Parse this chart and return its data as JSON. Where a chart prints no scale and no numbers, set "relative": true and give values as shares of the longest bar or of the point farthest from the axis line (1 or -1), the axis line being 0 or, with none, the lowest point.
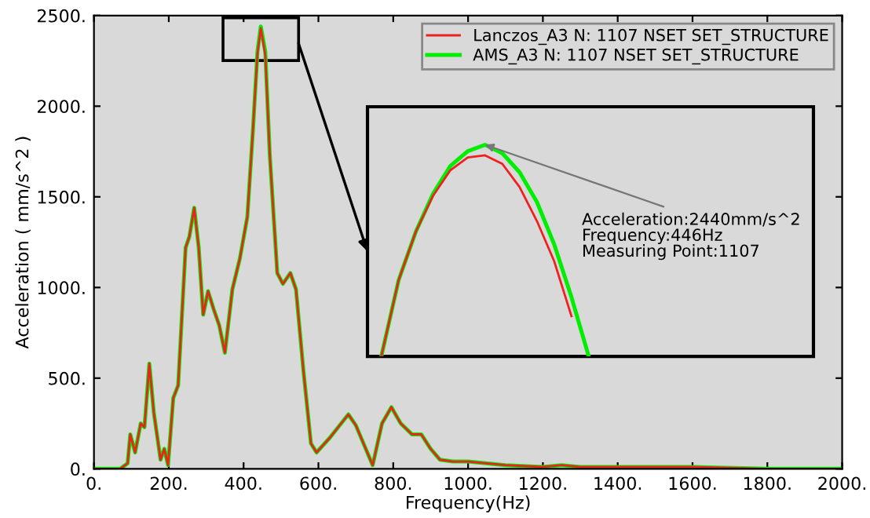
{
  "chart_data": [
    {
      "type": "line",
      "xlabel": "Frequency(Hz)",
      "ylabel": "Acceleration ( mm/s^2 )",
      "x": [
        0,
        70,
        90,
        97,
        110,
        125,
        135,
        148,
        160,
        178,
        188,
        198,
        212,
        225,
        245,
        255,
        268,
        280,
        292,
        305,
        320,
        335,
        350,
        370,
        390,
        410,
        425,
        437,
        446,
        458,
        470,
        490,
        505,
        525,
        540,
        560,
        580,
        595,
        630,
        680,
        700,
        745,
        770,
        795,
        820,
        850,
        875,
        900,
        925,
        960,
        1000,
        1100,
        1200,
        1250,
        1300,
        1400,
        1600,
        1800,
        2000
      ],
      "series": [
        {
          "name": "AMS_A3 N: 1107 NSET SET_STRUCTURE",
          "color": "#00ee00",
          "values": [
            0,
            0,
            30,
            190,
            90,
            250,
            230,
            580,
            310,
            50,
            110,
            20,
            390,
            460,
            1220,
            1280,
            1440,
            1220,
            850,
            980,
            880,
            790,
            640,
            990,
            1160,
            1390,
            1870,
            2300,
            2440,
            2300,
            1730,
            1080,
            1020,
            1080,
            990,
            540,
            140,
            90,
            170,
            300,
            240,
            20,
            250,
            340,
            250,
            190,
            190,
            110,
            50,
            40,
            40,
            20,
            10,
            20,
            10,
            10,
            10,
            0,
            0
          ]
        },
        {
          "name": "Lanczos_A3 N: 1107 NSET SET_STRUCTURE",
          "color": "#ee2020",
          "values": [
            0,
            0,
            30,
            190,
            90,
            250,
            230,
            580,
            310,
            50,
            110,
            20,
            390,
            460,
            1220,
            1280,
            1440,
            1220,
            850,
            980,
            880,
            790,
            640,
            990,
            1160,
            1390,
            1870,
            2290,
            2430,
            2280,
            1730,
            1080,
            1020,
            1080,
            990,
            540,
            140,
            90,
            170,
            300,
            240,
            20,
            250,
            340,
            250,
            190,
            190,
            110,
            50,
            40,
            40,
            20,
            10,
            20,
            10,
            10,
            10,
            0,
            0
          ]
        }
      ],
      "xlim": [
        0,
        2000
      ],
      "ylim": [
        0,
        2500
      ],
      "xticks": [
        {
          "value": 0,
          "label": "0."
        },
        {
          "value": 200,
          "label": "200."
        },
        {
          "value": 400,
          "label": "400."
        },
        {
          "value": 600,
          "label": "600."
        },
        {
          "value": 800,
          "label": "800."
        },
        {
          "value": 1000,
          "label": "1000."
        },
        {
          "value": 1200,
          "label": "1200."
        },
        {
          "value": 1400,
          "label": "1400."
        },
        {
          "value": 1600,
          "label": "1600."
        },
        {
          "value": 1800,
          "label": "1800."
        },
        {
          "value": 2000,
          "label": "2000."
        }
      ],
      "yticks": [
        {
          "value": 0,
          "label": "0."
        },
        {
          "value": 500,
          "label": "500."
        },
        {
          "value": 1000,
          "label": "1000."
        },
        {
          "value": 1500,
          "label": "1500."
        },
        {
          "value": 2000,
          "label": "2000."
        },
        {
          "value": 2500,
          "label": "2500."
        }
      ],
      "legend": "top right",
      "grid": false,
      "marker": "none",
      "line_style": "solid"
    },
    {
      "type": "line",
      "relative": true,
      "tick_labels": false,
      "categories": [
        null,
        null,
        null,
        null,
        null,
        null,
        null,
        null,
        null,
        null,
        null,
        null,
        null
      ],
      "series": [
        {
          "color": "#00ee00",
          "values": [
            0,
            0.36,
            0.59,
            0.77,
            0.9,
            0.97,
            1,
            0.96,
            0.87,
            0.73,
            0.53,
            0.28,
            0
          ]
        },
        {
          "color": "#ee2020",
          "values": [
            0,
            0.36,
            0.59,
            0.76,
            0.88,
            0.94,
            0.95,
            0.91,
            0.8,
            0.64,
            0.45,
            0.19,
            null
          ]
        }
      ],
      "annotations": [
        "Acceleration:2440mm/s^2",
        "Frequency:446Hz",
        "Measuring Point:1107"
      ],
      "grid": false,
      "marker": "none",
      "line_style": "solid"
    }
  ]
}
